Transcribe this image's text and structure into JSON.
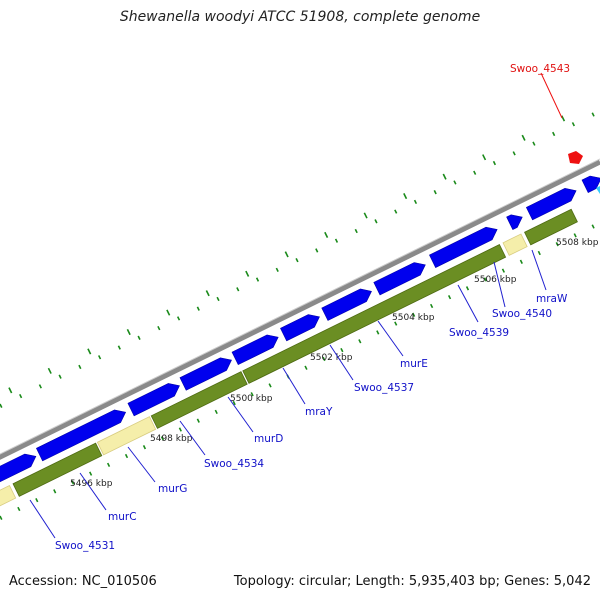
{
  "title": "Shewanella woodyi ATCC 51908, complete genome",
  "footer": {
    "accession": "Accession: NC_010506",
    "summary": "Topology: circular; Length: 5,935,403 bp; Genes: 5,042"
  },
  "kbp_labels": [
    "5496 kbp",
    "5498 kbp",
    "5500 kbp",
    "5502 kbp",
    "5504 kbp",
    "5506 kbp",
    "5508 kbp"
  ],
  "gene_labels": [
    "Swoo_4531",
    "murC",
    "murG",
    "Swoo_4534",
    "murD",
    "mraY",
    "Swoo_4537",
    "murE",
    "Swoo_4539",
    "Swoo_4540",
    "mraW"
  ],
  "highlight_label": "Swoo_4543",
  "colors": {
    "forward_gene": "#0000ee",
    "reverse_gene": "#6b8e23",
    "pale_gene": "#f5eeaa",
    "backbone": "#8a8a8a",
    "tick": "#1a8a1a",
    "label_line": "#2020d0",
    "highlight": "#ee1111"
  }
}
